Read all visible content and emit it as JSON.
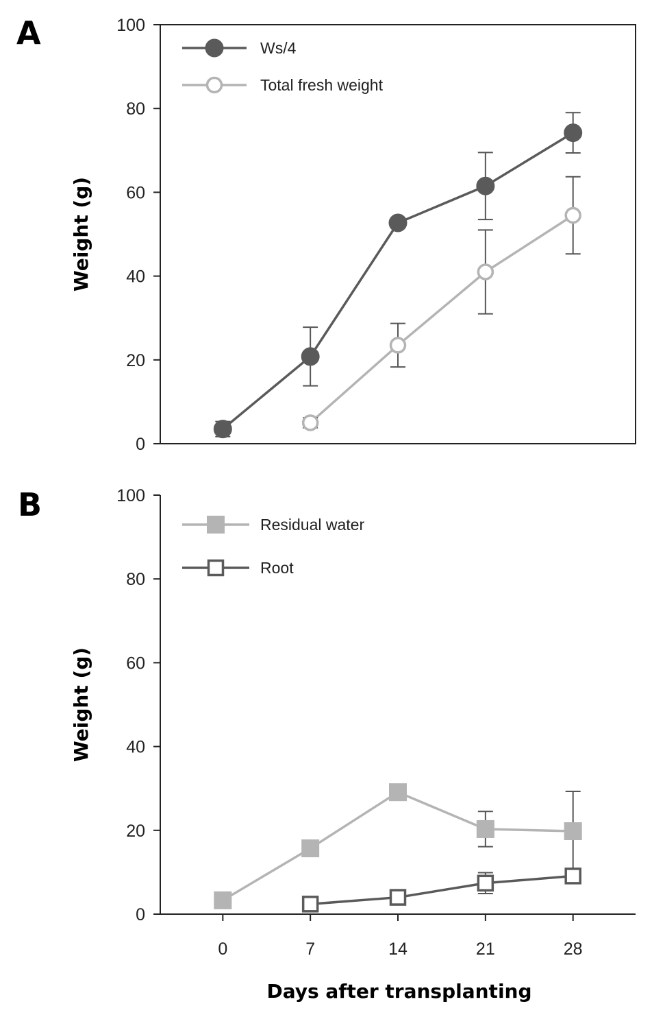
{
  "chart_data": [
    {
      "panel": "A",
      "type": "line",
      "xlabel": "",
      "ylabel": "Weight (g)",
      "ylim": [
        0,
        100
      ],
      "yticks": [
        0,
        20,
        40,
        60,
        80,
        100
      ],
      "xlim": [
        -5,
        33
      ],
      "legend_position": "top-left",
      "grid": false,
      "series": [
        {
          "name": "Ws/4",
          "marker": "filled-circle",
          "color": "#5a5a5a",
          "x": [
            0,
            7,
            14,
            21,
            28
          ],
          "y": [
            3.5,
            20.8,
            52.7,
            61.5,
            74.2
          ],
          "err": [
            1.8,
            7.0,
            0,
            8.0,
            4.8
          ]
        },
        {
          "name": "Total fresh weight",
          "marker": "open-circle",
          "color": "#b4b4b4",
          "x": [
            7,
            14,
            21,
            28
          ],
          "y": [
            5.0,
            23.5,
            41.0,
            54.5
          ],
          "err": [
            1.2,
            5.2,
            10.0,
            9.2
          ]
        }
      ]
    },
    {
      "panel": "B",
      "type": "line",
      "xlabel": "Days after transplanting",
      "ylabel": "Weight (g)",
      "ylim": [
        0,
        100
      ],
      "yticks": [
        0,
        20,
        40,
        60,
        80,
        100
      ],
      "xticks": [
        0,
        7,
        14,
        21,
        28
      ],
      "xlim": [
        -5,
        33
      ],
      "legend_position": "top-left",
      "grid": false,
      "series": [
        {
          "name": "Residual water",
          "marker": "filled-square",
          "color": "#b4b4b4",
          "x": [
            0,
            7,
            14,
            21,
            28
          ],
          "y": [
            3.3,
            15.7,
            29.1,
            20.3,
            19.8
          ],
          "err": [
            0,
            0,
            0,
            4.2,
            9.5
          ]
        },
        {
          "name": "Root",
          "marker": "open-square",
          "color": "#5a5a5a",
          "x": [
            7,
            14,
            21,
            28
          ],
          "y": [
            2.4,
            4.0,
            7.4,
            9.1
          ],
          "err": [
            0,
            0,
            2.5,
            0
          ]
        }
      ]
    }
  ]
}
